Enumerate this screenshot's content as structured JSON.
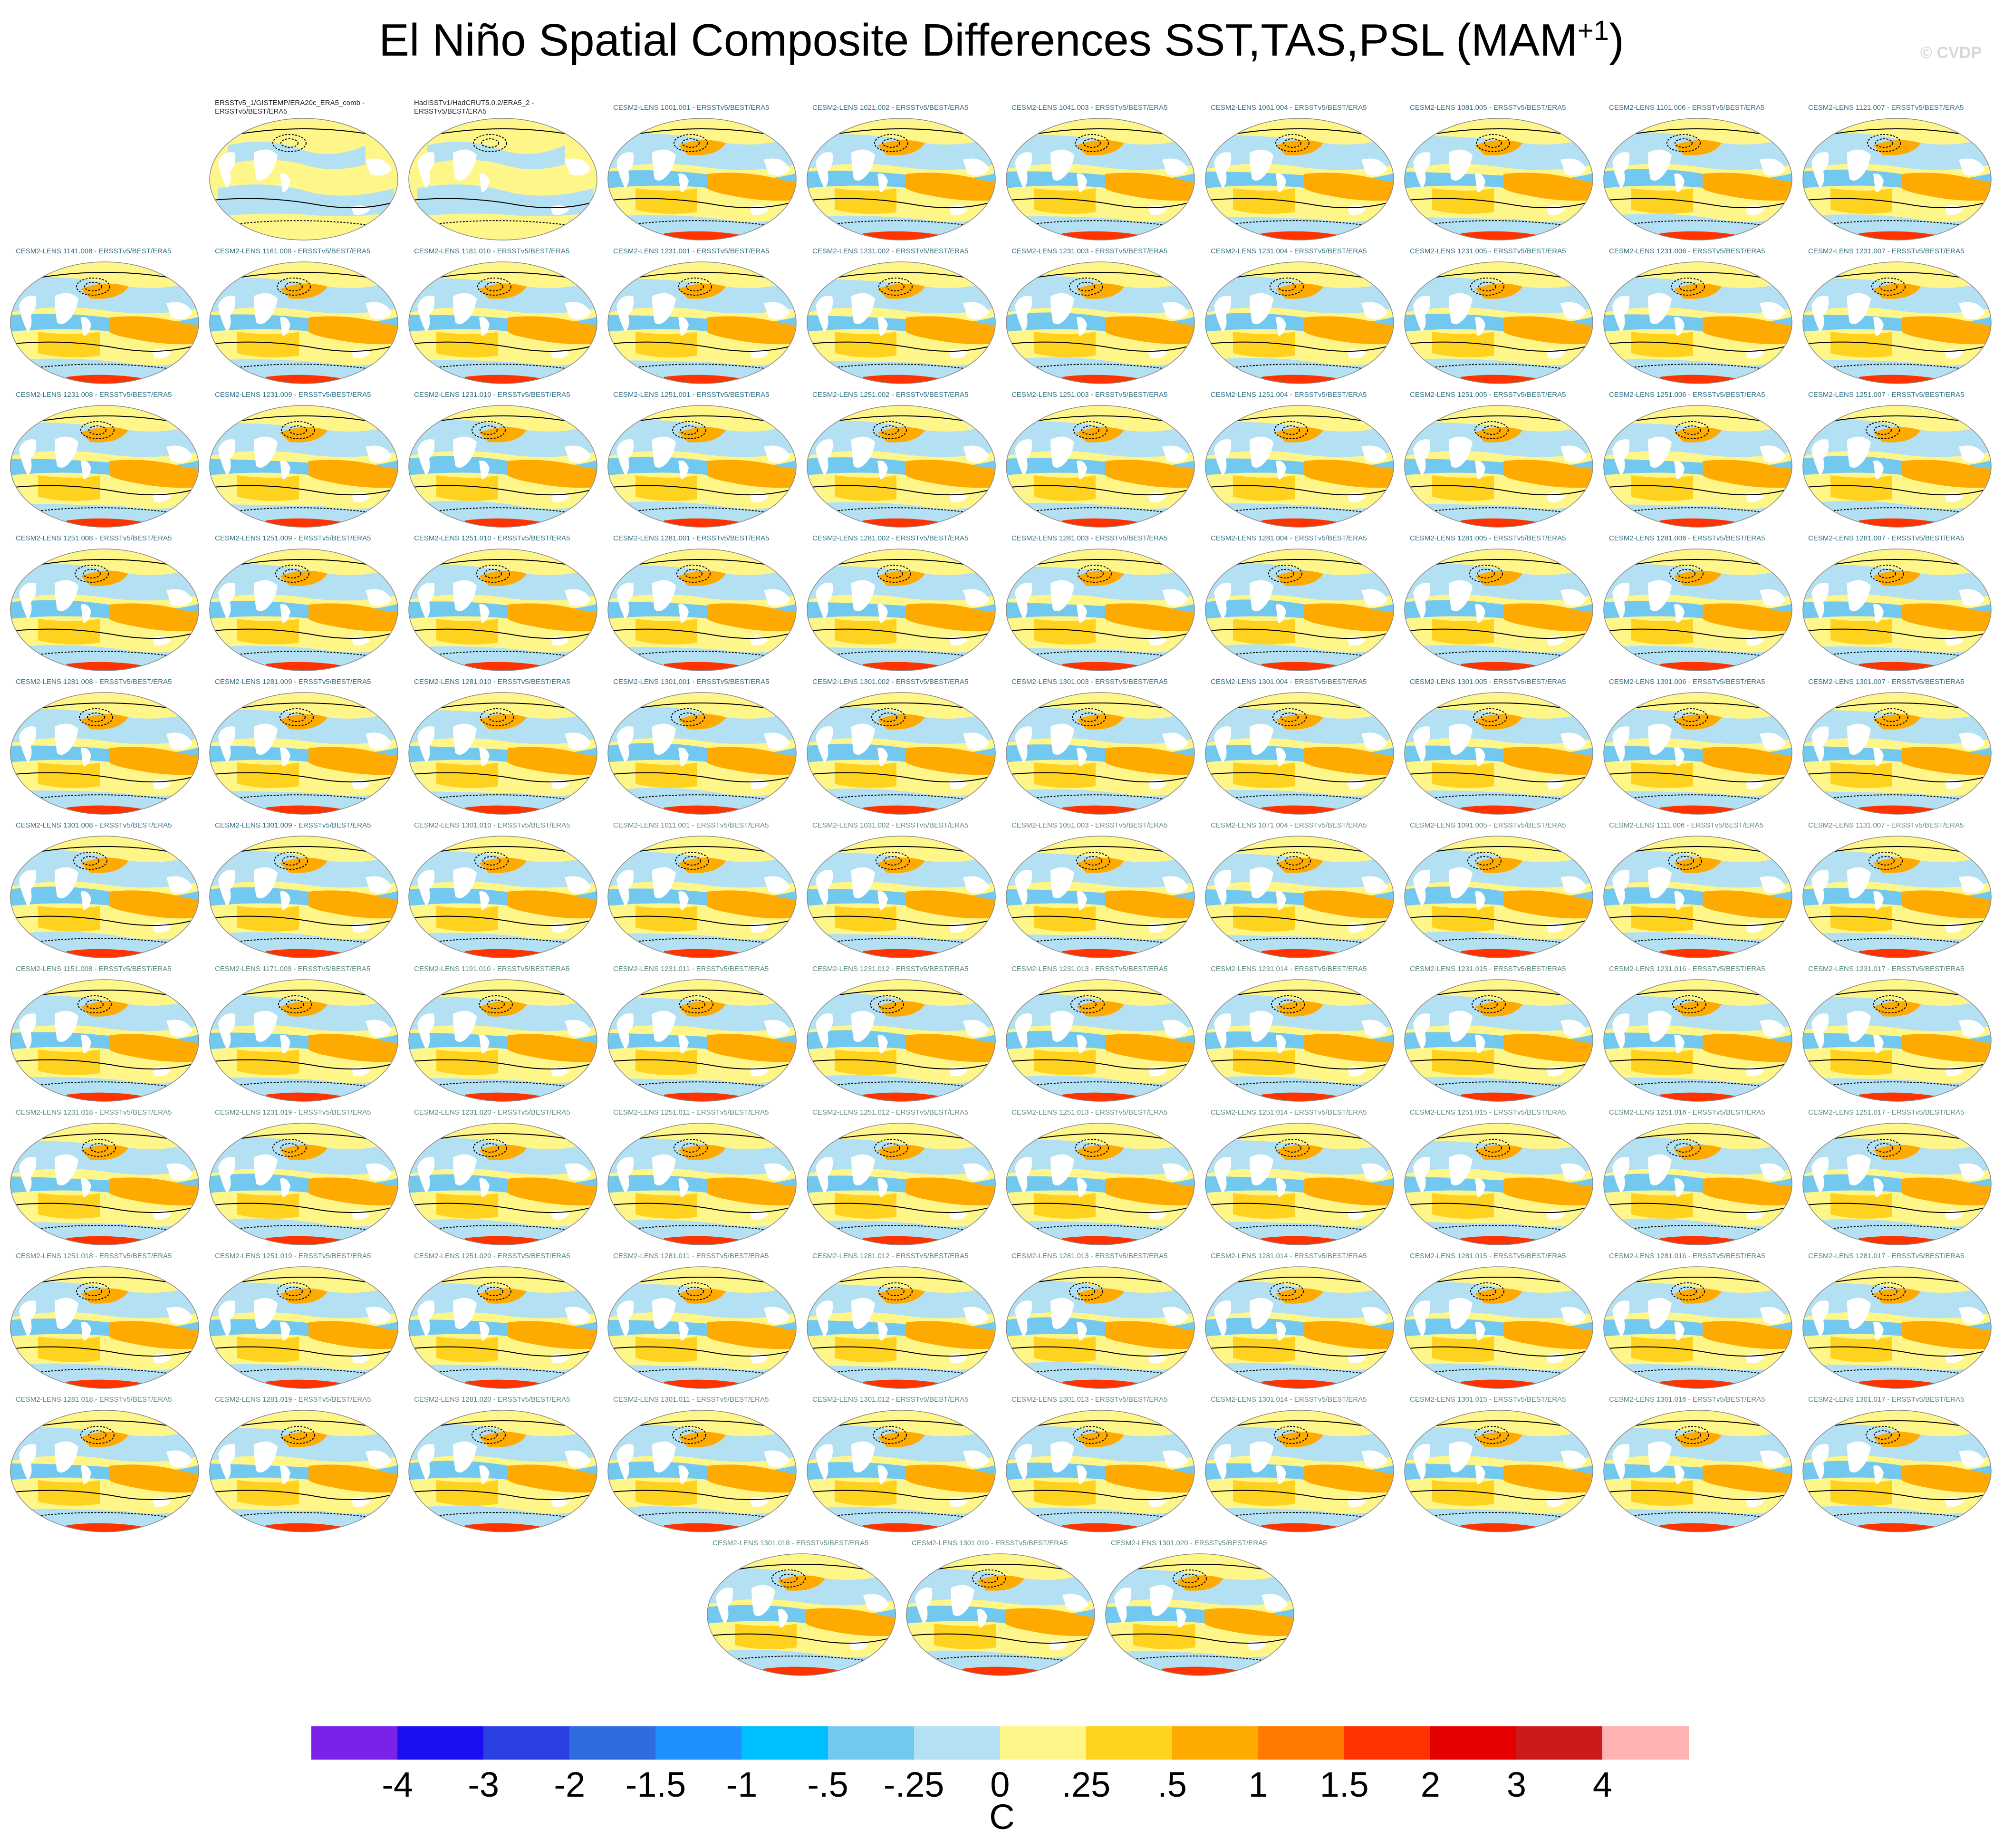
{
  "title": "El Niño Spatial Composite Differences SST,TAS,PSL (MAM",
  "title_superscript": "+1",
  "title_close": ")",
  "copyright": "© CVDP",
  "panels": [
    "ERSSTv5_1/GISTEMP/ERA20c_ERA5_comb - ERSSTv5/BEST/ERA5",
    "HadISSTv1/HadCRUT5.0.2/ERA5_2 - ERSSTv5/BEST/ERA5",
    "CESM2-LENS 1001.001 - ERSSTv5/BEST/ERA5",
    "CESM2-LENS 1021.002 - ERSSTv5/BEST/ERA5",
    "CESM2-LENS 1041.003 - ERSSTv5/BEST/ERA5",
    "CESM2-LENS 1061.004 - ERSSTv5/BEST/ERA5",
    "CESM2-LENS 1081.005 - ERSSTv5/BEST/ERA5",
    "CESM2-LENS 1101.006 - ERSSTv5/BEST/ERA5",
    "CESM2-LENS 1121.007 - ERSSTv5/BEST/ERA5",
    "CESM2-LENS 1141.008 - ERSSTv5/BEST/ERA5",
    "CESM2-LENS 1161.009 - ERSSTv5/BEST/ERA5",
    "CESM2-LENS 1181.010 - ERSSTv5/BEST/ERA5",
    "CESM2-LENS 1231.001 - ERSSTv5/BEST/ERA5",
    "CESM2-LENS 1231.002 - ERSSTv5/BEST/ERA5",
    "CESM2-LENS 1231.003 - ERSSTv5/BEST/ERA5",
    "CESM2-LENS 1231.004 - ERSSTv5/BEST/ERA5",
    "CESM2-LENS 1231.005 - ERSSTv5/BEST/ERA5",
    "CESM2-LENS 1231.006 - ERSSTv5/BEST/ERA5",
    "CESM2-LENS 1231.007 - ERSSTv5/BEST/ERA5",
    "CESM2-LENS 1231.008 - ERSSTv5/BEST/ERA5",
    "CESM2-LENS 1231.009 - ERSSTv5/BEST/ERA5",
    "CESM2-LENS 1231.010 - ERSSTv5/BEST/ERA5",
    "CESM2-LENS 1251.001 - ERSSTv5/BEST/ERA5",
    "CESM2-LENS 1251.002 - ERSSTv5/BEST/ERA5",
    "CESM2-LENS 1251.003 - ERSSTv5/BEST/ERA5",
    "CESM2-LENS 1251.004 - ERSSTv5/BEST/ERA5",
    "CESM2-LENS 1251.005 - ERSSTv5/BEST/ERA5",
    "CESM2-LENS 1251.006 - ERSSTv5/BEST/ERA5",
    "CESM2-LENS 1251.007 - ERSSTv5/BEST/ERA5",
    "CESM2-LENS 1251.008 - ERSSTv5/BEST/ERA5",
    "CESM2-LENS 1251.009 - ERSSTv5/BEST/ERA5",
    "CESM2-LENS 1251.010 - ERSSTv5/BEST/ERA5",
    "CESM2-LENS 1281.001 - ERSSTv5/BEST/ERA5",
    "CESM2-LENS 1281.002 - ERSSTv5/BEST/ERA5",
    "CESM2-LENS 1281.003 - ERSSTv5/BEST/ERA5",
    "CESM2-LENS 1281.004 - ERSSTv5/BEST/ERA5",
    "CESM2-LENS 1281.005 - ERSSTv5/BEST/ERA5",
    "CESM2-LENS 1281.006 - ERSSTv5/BEST/ERA5",
    "CESM2-LENS 1281.007 - ERSSTv5/BEST/ERA5",
    "CESM2-LENS 1281.008 - ERSSTv5/BEST/ERA5",
    "CESM2-LENS 1281.009 - ERSSTv5/BEST/ERA5",
    "CESM2-LENS 1281.010 - ERSSTv5/BEST/ERA5",
    "CESM2-LENS 1301.001 - ERSSTv5/BEST/ERA5",
    "CESM2-LENS 1301.002 - ERSSTv5/BEST/ERA5",
    "CESM2-LENS 1301.003 - ERSSTv5/BEST/ERA5",
    "CESM2-LENS 1301.004 - ERSSTv5/BEST/ERA5",
    "CESM2-LENS 1301.005 - ERSSTv5/BEST/ERA5",
    "CESM2-LENS 1301.006 - ERSSTv5/BEST/ERA5",
    "CESM2-LENS 1301.007 - ERSSTv5/BEST/ERA5",
    "CESM2-LENS 1301.008 - ERSSTv5/BEST/ERA5",
    "CESM2-LENS 1301.009 - ERSSTv5/BEST/ERA5",
    "CESM2-LENS 1301.010 - ERSSTv5/BEST/ERA5",
    "CESM2-LENS 1011.001 - ERSSTv5/BEST/ERA5",
    "CESM2-LENS 1031.002 - ERSSTv5/BEST/ERA5",
    "CESM2-LENS 1051.003 - ERSSTv5/BEST/ERA5",
    "CESM2-LENS 1071.004 - ERSSTv5/BEST/ERA5",
    "CESM2-LENS 1091.005 - ERSSTv5/BEST/ERA5",
    "CESM2-LENS 1111.006 - ERSSTv5/BEST/ERA5",
    "CESM2-LENS 1131.007 - ERSSTv5/BEST/ERA5",
    "CESM2-LENS 1151.008 - ERSSTv5/BEST/ERA5",
    "CESM2-LENS 1171.009 - ERSSTv5/BEST/ERA5",
    "CESM2-LENS 1191.010 - ERSSTv5/BEST/ERA5",
    "CESM2-LENS 1231.011 - ERSSTv5/BEST/ERA5",
    "CESM2-LENS 1231.012 - ERSSTv5/BEST/ERA5",
    "CESM2-LENS 1231.013 - ERSSTv5/BEST/ERA5",
    "CESM2-LENS 1231.014 - ERSSTv5/BEST/ERA5",
    "CESM2-LENS 1231.015 - ERSSTv5/BEST/ERA5",
    "CESM2-LENS 1231.016 - ERSSTv5/BEST/ERA5",
    "CESM2-LENS 1231.017 - ERSSTv5/BEST/ERA5",
    "CESM2-LENS 1231.018 - ERSSTv5/BEST/ERA5",
    "CESM2-LENS 1231.019 - ERSSTv5/BEST/ERA5",
    "CESM2-LENS 1231.020 - ERSSTv5/BEST/ERA5",
    "CESM2-LENS 1251.011 - ERSSTv5/BEST/ERA5",
    "CESM2-LENS 1251.012 - ERSSTv5/BEST/ERA5",
    "CESM2-LENS 1251.013 - ERSSTv5/BEST/ERA5",
    "CESM2-LENS 1251.014 - ERSSTv5/BEST/ERA5",
    "CESM2-LENS 1251.015 - ERSSTv5/BEST/ERA5",
    "CESM2-LENS 1251.016 - ERSSTv5/BEST/ERA5",
    "CESM2-LENS 1251.017 - ERSSTv5/BEST/ERA5",
    "CESM2-LENS 1251.018 - ERSSTv5/BEST/ERA5",
    "CESM2-LENS 1251.019 - ERSSTv5/BEST/ERA5",
    "CESM2-LENS 1251.020 - ERSSTv5/BEST/ERA5",
    "CESM2-LENS 1281.011 - ERSSTv5/BEST/ERA5",
    "CESM2-LENS 1281.012 - ERSSTv5/BEST/ERA5",
    "CESM2-LENS 1281.013 - ERSSTv5/BEST/ERA5",
    "CESM2-LENS 1281.014 - ERSSTv5/BEST/ERA5",
    "CESM2-LENS 1281.015 - ERSSTv5/BEST/ERA5",
    "CESM2-LENS 1281.016 - ERSSTv5/BEST/ERA5",
    "CESM2-LENS 1281.017 - ERSSTv5/BEST/ERA5",
    "CESM2-LENS 1281.018 - ERSSTv5/BEST/ERA5",
    "CESM2-LENS 1281.019 - ERSSTv5/BEST/ERA5",
    "CESM2-LENS 1281.020 - ERSSTv5/BEST/ERA5",
    "CESM2-LENS 1301.011 - ERSSTv5/BEST/ERA5",
    "CESM2-LENS 1301.012 - ERSSTv5/BEST/ERA5",
    "CESM2-LENS 1301.013 - ERSSTv5/BEST/ERA5",
    "CESM2-LENS 1301.014 - ERSSTv5/BEST/ERA5",
    "CESM2-LENS 1301.015 - ERSSTv5/BEST/ERA5",
    "CESM2-LENS 1301.016 - ERSSTv5/BEST/ERA5",
    "CESM2-LENS 1301.017 - ERSSTv5/BEST/ERA5",
    "CESM2-LENS 1301.018 - ERSSTv5/BEST/ERA5",
    "CESM2-LENS 1301.019 - ERSSTv5/BEST/ERA5",
    "CESM2-LENS 1301.020 - ERSSTv5/BEST/ERA5"
  ],
  "colorbar": {
    "colors": [
      "#7b22e8",
      "#1a0ff0",
      "#2a40e0",
      "#2f6ce0",
      "#1e90ff",
      "#00bfff",
      "#73c8f0",
      "#b3e0f2",
      "#fff68a",
      "#ffd21f",
      "#ffaa00",
      "#ff7a00",
      "#ff3300",
      "#e50000",
      "#cc1a1a",
      "#ffb2b2"
    ],
    "ticks": [
      "-4",
      "-3",
      "-2",
      "-1.5",
      "-1",
      "-.5",
      "-.25",
      "0",
      ".25",
      ".5",
      "1",
      "1.5",
      "2",
      "3",
      "4"
    ],
    "units": "C"
  },
  "map_colors": {
    "land": "#ffffff",
    "pale_yellow": "#fff68a",
    "warm": "#ffaa00",
    "warm_light": "#ffd21f",
    "cool": "#b3e0f2",
    "cool_mid": "#73c8f0",
    "cool_strong": "#1e90ff",
    "hot": "#ff3300",
    "contour": "#000000"
  }
}
